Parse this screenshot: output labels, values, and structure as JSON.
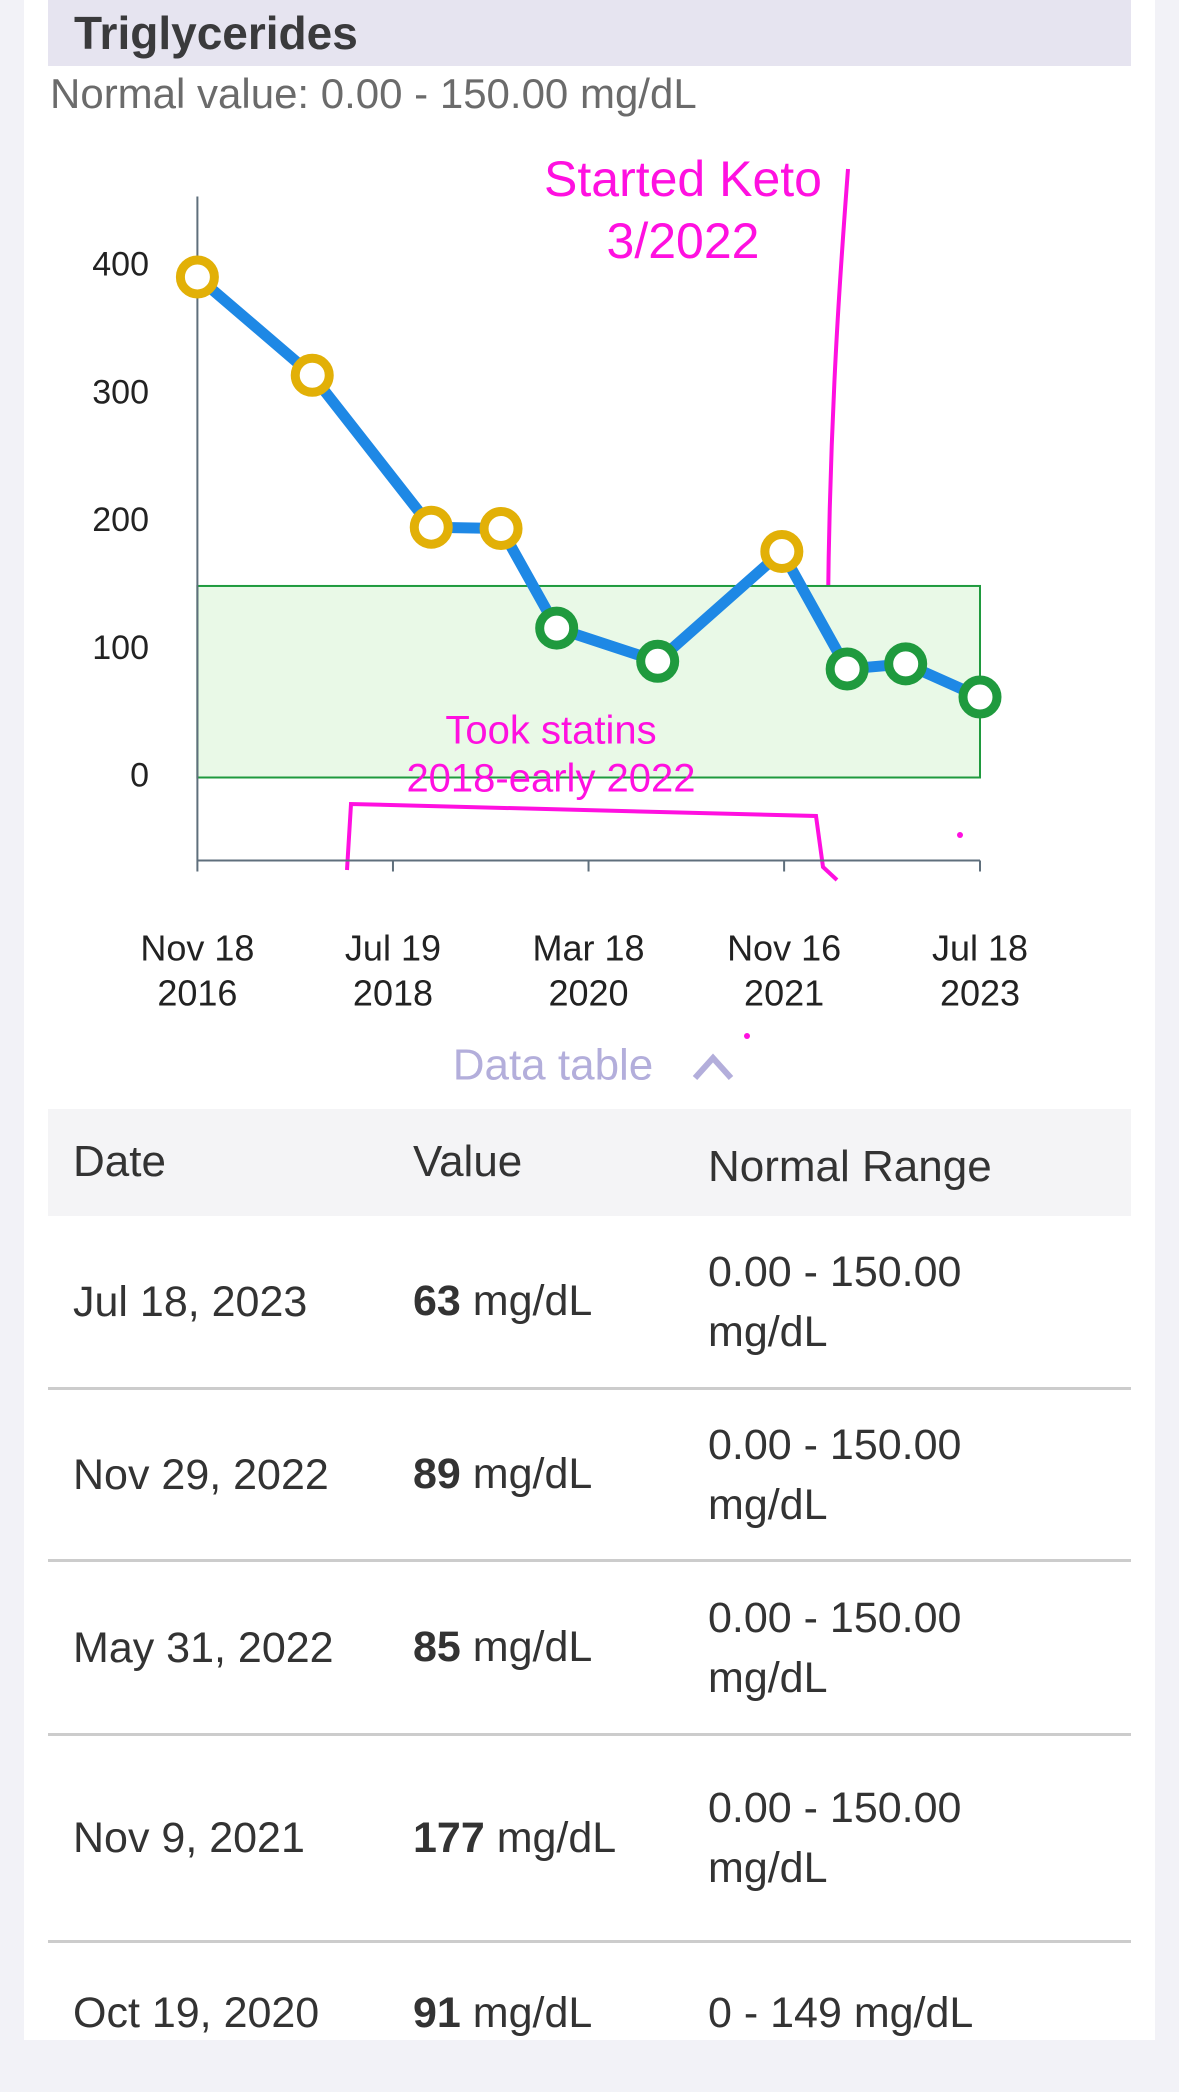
{
  "header": {
    "title": "Triglycerides",
    "subtitle": "Normal value: 0.00 - 150.00 mg/dL"
  },
  "chart_data": {
    "type": "line",
    "x": [
      "2016-11-18",
      "2017-11-10",
      "2018-11-15",
      "2019-06-20",
      "2019-12-10",
      "2020-10-19",
      "2021-11-09",
      "2022-05-31",
      "2022-11-29",
      "2023-07-18"
    ],
    "series": [
      {
        "color": "#1e88e5",
        "values": [
          392,
          315,
          196,
          195,
          117,
          91,
          177,
          85,
          89,
          63
        ]
      }
    ],
    "xlim": [
      "2016-11-18",
      "2023-07-18"
    ],
    "xticks": [
      {
        "value": "2016-11-18",
        "label": [
          "Nov 18",
          "2016"
        ]
      },
      {
        "value": "2018-07-19",
        "label": [
          "Jul 19",
          "2018"
        ]
      },
      {
        "value": "2020-03-18",
        "label": [
          "Mar 18",
          "2020"
        ]
      },
      {
        "value": "2021-11-16",
        "label": [
          "Nov 16",
          "2021"
        ]
      },
      {
        "value": "2023-07-18",
        "label": [
          "Jul 18",
          "2023"
        ]
      }
    ],
    "ylim": [
      -65,
      455
    ],
    "yticks": [
      0,
      100,
      200,
      300,
      400
    ],
    "grid": false,
    "normal_range": [
      0,
      150
    ],
    "normal_color": "#1f9a3e",
    "high_color": "#e2b007",
    "band_fill": "#e9f9e7",
    "annotations": {
      "keto": [
        "Started Keto",
        "3/2022"
      ],
      "statins": [
        "Took statins",
        "2018-early 2022"
      ],
      "color": "#ff10e0"
    }
  },
  "toggle": "Data table",
  "table": {
    "header": [
      "Date",
      "Value",
      "Normal Range"
    ],
    "rows": [
      {
        "date": "Jul 18, 2023",
        "value": 63,
        "unit": "mg/dL",
        "range": "0.00 - 150.00 mg/dL"
      },
      {
        "date": "Nov 29, 2022",
        "value": 89,
        "unit": "mg/dL",
        "range": "0.00 - 150.00 mg/dL"
      },
      {
        "date": "May 31, 2022",
        "value": 85,
        "unit": "mg/dL",
        "range": "0.00 - 150.00 mg/dL"
      },
      {
        "date": "Nov 9, 2021",
        "value": 177,
        "unit": "mg/dL",
        "range": "0.00 - 150.00 mg/dL"
      },
      {
        "date": "Oct 19, 2020",
        "value": 91,
        "unit": "mg/dL",
        "range": "0 - 149 mg/dL"
      }
    ]
  }
}
